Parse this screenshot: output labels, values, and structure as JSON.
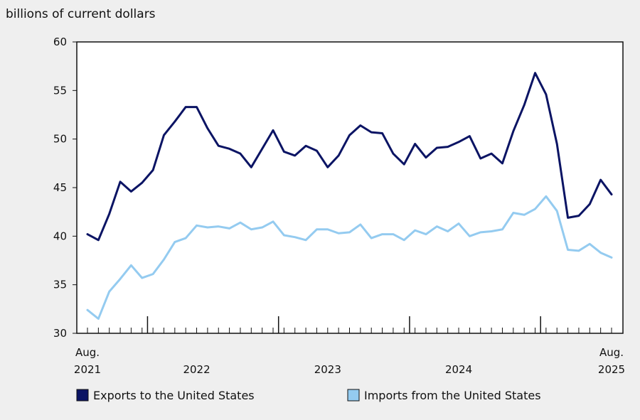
{
  "chart_data": {
    "type": "line",
    "units_label": "billions of current dollars",
    "ylim": [
      30,
      60
    ],
    "y_ticks": [
      30,
      35,
      40,
      45,
      50,
      55,
      60
    ],
    "x_labels": [
      {
        "month_index": 0,
        "line1": "Aug.",
        "line2": "2021"
      },
      {
        "month_index": 10,
        "line1": "",
        "line2": "2022"
      },
      {
        "month_index": 22,
        "line1": "",
        "line2": "2023"
      },
      {
        "month_index": 34,
        "line1": "",
        "line2": "2024"
      },
      {
        "month_index": 48,
        "line1": "Aug.",
        "line2": "2025"
      }
    ],
    "year_boundaries": [
      5,
      17,
      29,
      41
    ],
    "first_month": "2021-08",
    "last_month": "2025-08",
    "grid": false,
    "legend_position": "bottom",
    "series": [
      {
        "name": "Exports to the United States",
        "color": "#0b1464",
        "values": [
          40.2,
          39.6,
          42.3,
          45.6,
          44.6,
          45.5,
          46.8,
          50.4,
          51.8,
          53.3,
          53.3,
          51.1,
          49.3,
          49.0,
          48.5,
          47.1,
          49.0,
          50.9,
          48.7,
          48.3,
          49.3,
          48.8,
          47.1,
          48.3,
          50.4,
          51.4,
          50.7,
          50.6,
          48.5,
          47.4,
          49.5,
          48.1,
          49.1,
          49.2,
          49.7,
          50.3,
          48.0,
          48.5,
          47.5,
          50.8,
          53.5,
          56.8,
          54.6,
          49.5,
          41.9,
          42.1,
          43.3,
          45.8,
          44.3
        ]
      },
      {
        "name": "Imports from the United States",
        "color": "#94cbf0",
        "values": [
          32.4,
          31.5,
          34.3,
          35.6,
          37.0,
          35.7,
          36.1,
          37.6,
          39.4,
          39.8,
          41.1,
          40.9,
          41.0,
          40.8,
          41.4,
          40.7,
          40.9,
          41.5,
          40.1,
          39.9,
          39.6,
          40.7,
          40.7,
          40.3,
          40.4,
          41.2,
          39.8,
          40.2,
          40.2,
          39.6,
          40.6,
          40.2,
          41.0,
          40.5,
          41.3,
          40.0,
          40.4,
          40.5,
          40.7,
          42.4,
          42.2,
          42.8,
          44.1,
          42.6,
          38.6,
          38.5,
          39.2,
          38.3,
          37.8
        ]
      }
    ]
  }
}
